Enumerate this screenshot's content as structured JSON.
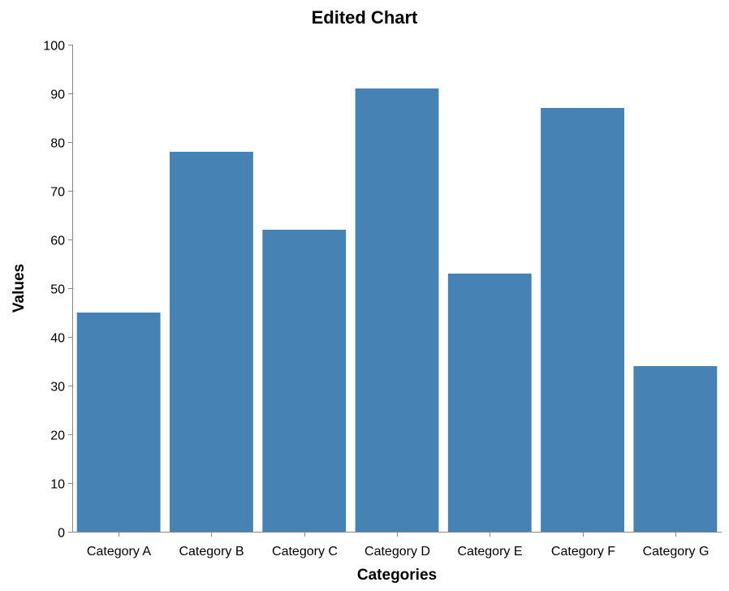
{
  "chart_data": {
    "type": "bar",
    "title": "Edited Chart",
    "xlabel": "Categories",
    "ylabel": "Values",
    "categories": [
      "Category A",
      "Category B",
      "Category C",
      "Category D",
      "Category E",
      "Category F",
      "Category G"
    ],
    "values": [
      45,
      78,
      62,
      91,
      53,
      87,
      34
    ],
    "ylim": [
      0,
      100
    ],
    "yticks": [
      0,
      10,
      20,
      30,
      40,
      50,
      60,
      70,
      80,
      90,
      100
    ],
    "grid": false,
    "bar_color": "#4682b4",
    "axis_color": "#888888"
  }
}
